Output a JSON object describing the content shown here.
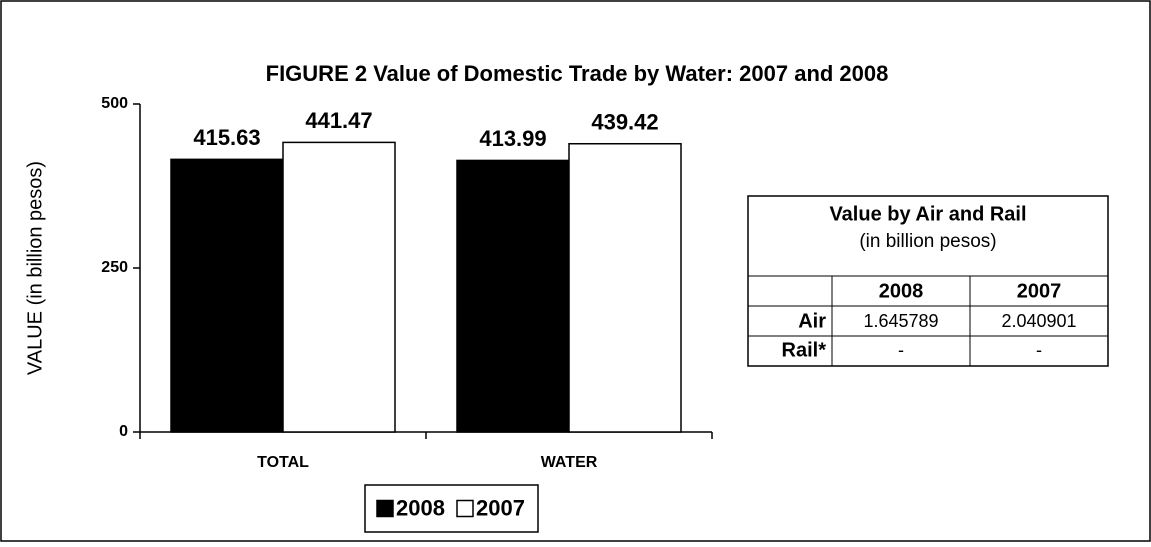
{
  "chart_data": {
    "type": "bar",
    "title": "FIGURE 2  Value of Domestic Trade by Water:  2007 and 2008",
    "y_label": "VALUE (in billion pesos)",
    "categories": [
      "TOTAL",
      "WATER"
    ],
    "series": [
      {
        "name": "2008",
        "color": "#000000",
        "values": [
          415.63,
          413.99
        ]
      },
      {
        "name": "2007",
        "color": "#ffffff",
        "values": [
          441.47,
          439.42
        ]
      }
    ],
    "ylim": [
      0,
      500
    ],
    "yticks": [
      0,
      250,
      500
    ],
    "grid": false,
    "legend": "bottom"
  },
  "table": {
    "title": "Value by Air and Rail",
    "subtitle": "(in billion pesos)",
    "columns": [
      "",
      "2008",
      "2007"
    ],
    "rows": [
      [
        "Air",
        "1.645789",
        "2.040901"
      ],
      [
        "Rail*",
        "-",
        "-"
      ]
    ]
  }
}
